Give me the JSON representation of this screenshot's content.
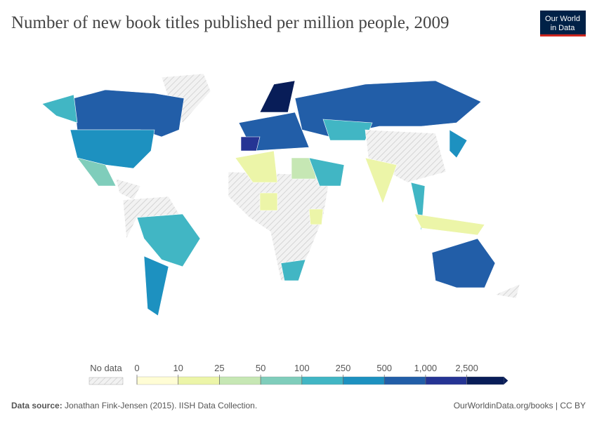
{
  "header": {
    "title": "Number of new book titles published per million people, 2009",
    "logo": [
      "Our World",
      "in Data"
    ]
  },
  "legend": {
    "no_data": "No data",
    "ticks": [
      0,
      10,
      25,
      50,
      100,
      250,
      500,
      {
        "value": 1000,
        "label": "1,000"
      },
      {
        "value": 2500,
        "label": "2,500"
      }
    ],
    "colors": [
      "#fffdd5",
      "#ecf5a8",
      "#c6e7b4",
      "#7fcdbb",
      "#41b6c4",
      "#1d91c0",
      "#225ea8",
      "#253494",
      "#081d58"
    ]
  },
  "footer": {
    "source_label": "Data source:",
    "source": "Jonathan Fink-Jensen (2015). IISH Data Collection.",
    "url": "OurWorldinData.org/books | CC BY"
  }
}
